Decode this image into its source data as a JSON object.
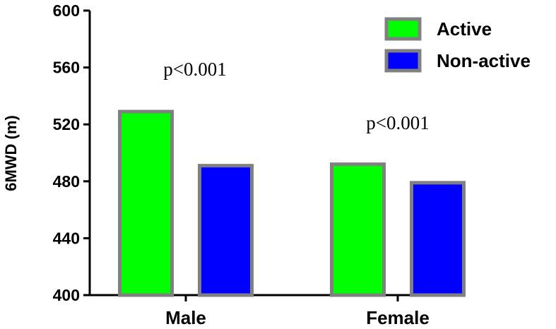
{
  "chart_data": {
    "type": "bar",
    "title": "",
    "xlabel": "",
    "ylabel": "6MWD (m)",
    "ylim": [
      400,
      600
    ],
    "yticks": [
      400,
      440,
      480,
      520,
      560,
      600
    ],
    "categories": [
      "Male",
      "Female"
    ],
    "series": [
      {
        "name": "Active",
        "values": [
          529,
          492
        ],
        "color": "#00ff00"
      },
      {
        "name": "Non-active",
        "values": [
          491,
          479
        ],
        "color": "#0000ff"
      }
    ],
    "annotations": [
      "p<0.001",
      "p<0.001"
    ],
    "legend": {
      "position": "top-right"
    },
    "grid": false,
    "bar_edge_color": "#808080"
  }
}
